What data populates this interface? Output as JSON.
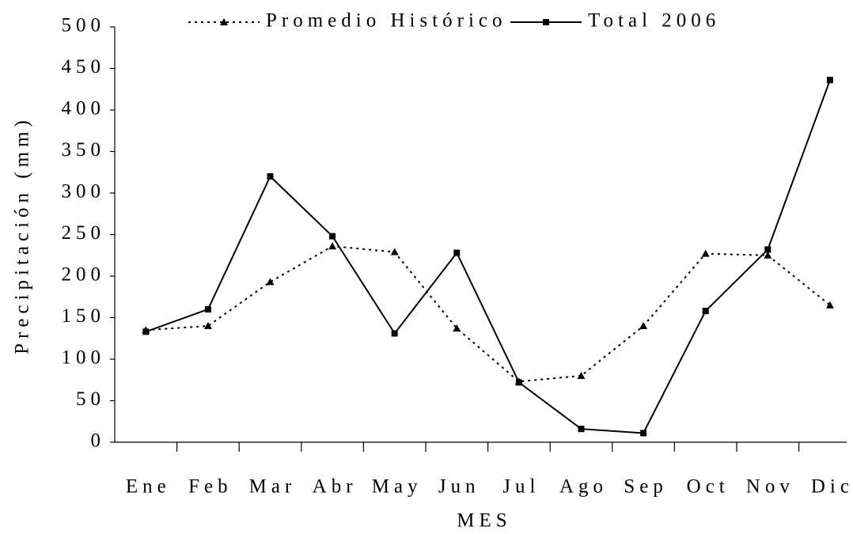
{
  "chart_data": {
    "type": "line",
    "x_label": "MES",
    "y_label": "Precipitación (mm)",
    "categories": [
      "Ene",
      "Feb",
      "Mar",
      "Abr",
      "May",
      "Jun",
      "Jul",
      "Ago",
      "Sep",
      "Oct",
      "Nov",
      "Dic"
    ],
    "series": [
      {
        "name": "Promedio Histórico",
        "color": "#000000",
        "dash": "dotted",
        "marker": "triangle",
        "values": [
          135,
          140,
          193,
          236,
          229,
          137,
          73,
          80,
          140,
          227,
          225,
          165
        ]
      },
      {
        "name": "Total 2006",
        "color": "#000000",
        "dash": "solid",
        "marker": "square",
        "values": [
          133,
          160,
          320,
          248,
          131,
          228,
          72,
          16,
          11,
          158,
          232,
          436
        ]
      }
    ],
    "ylim": [
      0,
      500
    ],
    "yticks": [
      0,
      50,
      100,
      150,
      200,
      250,
      300,
      350,
      400,
      450,
      500
    ]
  }
}
